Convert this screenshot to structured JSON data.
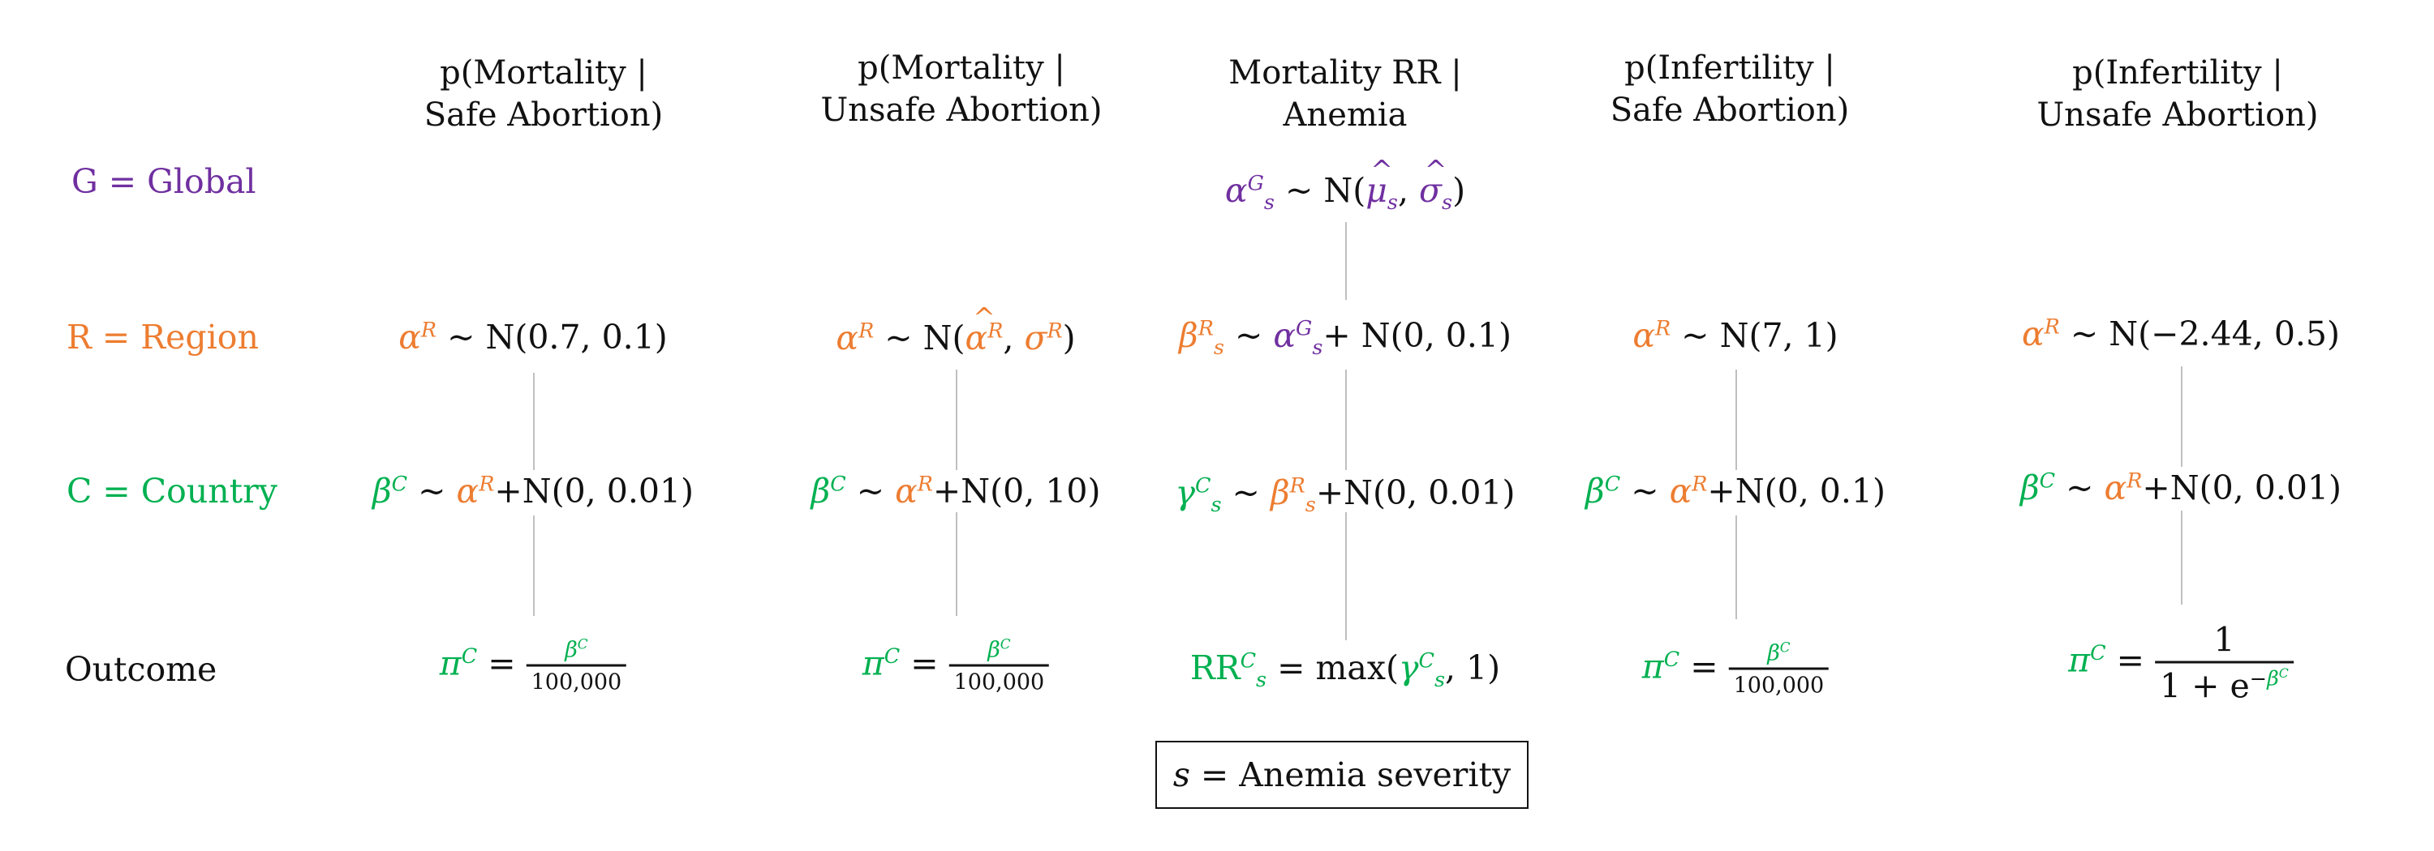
{
  "columns": [
    {
      "header_line1": "p(Mortality |",
      "header_line2": "Safe Abortion)"
    },
    {
      "header_line1": "p(Mortality |",
      "header_line2": "Unsafe Abortion)"
    },
    {
      "header_line1": "Mortality RR |",
      "header_line2": "Anemia"
    },
    {
      "header_line1": "p(Infertility |",
      "header_line2": "Safe Abortion)"
    },
    {
      "header_line1": "p(Infertility |",
      "header_line2": "Unsafe Abortion)"
    }
  ],
  "rows": {
    "global": "G = Global",
    "region": "R = Region",
    "country": "C = Country",
    "outcome": "Outcome"
  },
  "equations": {
    "global": {
      "rhs": "N(",
      "mu": "μ",
      "sep": ", ",
      "sigma": "σ",
      "close": ")"
    },
    "region": [
      {
        "rhs": "N(0.7, 0.1)"
      },
      {
        "rhs_open": "N(",
        "alpha": "α",
        "mid": ", σ",
        "close": ")"
      },
      {
        "rhs": "+ N(0, 0.1)"
      },
      {
        "rhs": "N(7, 1)"
      },
      {
        "rhs": "N(−2.44, 0.5)"
      }
    ],
    "country": [
      {
        "rhs": "+N(0, 0.01)"
      },
      {
        "rhs": "+N(0, 10)"
      },
      {
        "rhs": "+N(0, 0.01)"
      },
      {
        "rhs": "+N(0, 0.1)"
      },
      {
        "rhs": "+N(0, 0.01)"
      }
    ],
    "outcome": {
      "denominator": "100,000",
      "rr_label": "RR",
      "rr_rhs_open": "max(",
      "rr_rhs_close": ", 1)",
      "logistic_num": "1",
      "logistic_den": "1 + e"
    }
  },
  "legend": {
    "var": "s",
    "text": " = Anemia severity"
  },
  "colors": {
    "global": "#7030a0",
    "region": "#ed7d31",
    "country": "#00b050",
    "connector": "#c0c0c0"
  }
}
